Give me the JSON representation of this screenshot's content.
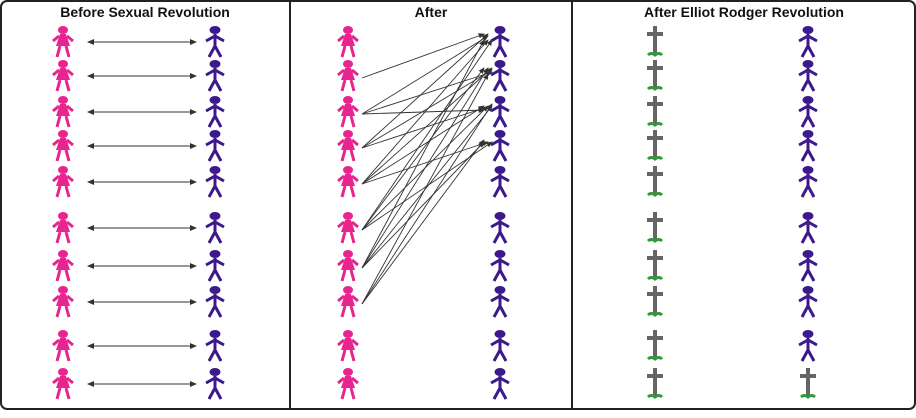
{
  "panels": [
    {
      "title": "Before Sexual Revolution",
      "left": "woman",
      "right": "man",
      "pairing": "one-to-one"
    },
    {
      "title": "After",
      "left": "woman",
      "right": "man",
      "pairing": "many-to-few"
    },
    {
      "title": "After Elliot Rodger Revolution",
      "left": "grave",
      "right": "man",
      "pairing": "none"
    }
  ],
  "rows": 10,
  "after_edges": [
    [
      1,
      0
    ],
    [
      2,
      0
    ],
    [
      2,
      1
    ],
    [
      2,
      2
    ],
    [
      3,
      0
    ],
    [
      3,
      1
    ],
    [
      3,
      2
    ],
    [
      4,
      0
    ],
    [
      4,
      1
    ],
    [
      4,
      2
    ],
    [
      4,
      3
    ],
    [
      5,
      0
    ],
    [
      5,
      1
    ],
    [
      5,
      2
    ],
    [
      5,
      3
    ],
    [
      6,
      0
    ],
    [
      6,
      1
    ],
    [
      6,
      2
    ],
    [
      6,
      3
    ],
    [
      7,
      1
    ],
    [
      7,
      2
    ],
    [
      7,
      3
    ]
  ],
  "rodger_right_last_is_grave": true,
  "colors": {
    "woman": "#e8258f",
    "man": "#3d1a8c",
    "grave": "#666666",
    "grass": "#2e9a3a",
    "arrow": "#333333",
    "border": "#222222"
  }
}
